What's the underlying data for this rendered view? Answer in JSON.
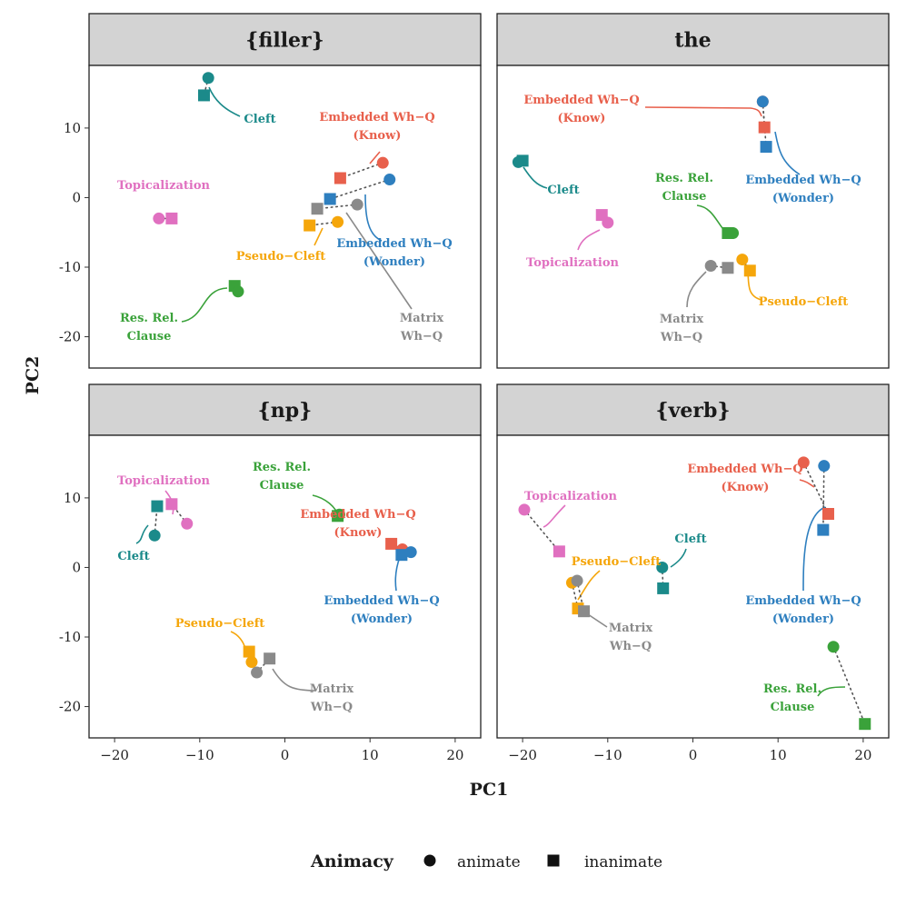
{
  "chart_data": {
    "type": "scatter",
    "xlabel": "PC1",
    "ylabel": "PC2",
    "xlim": [
      -23,
      23
    ],
    "xticks": [
      -20,
      -10,
      0,
      10,
      20
    ],
    "yticks": [
      -20,
      -10,
      0,
      10
    ],
    "colors": {
      "Cleft": "#1b8a8a",
      "Embedded Wh-Q (Know)": "#e8604c",
      "Embedded Wh-Q (Wonder)": "#2e7fbf",
      "Matrix Wh-Q": "#8a8a8a",
      "Pseudo-Cleft": "#f5a60b",
      "Res. Rel. Clause": "#3aa23a",
      "Topicalization": "#e070c0"
    },
    "legend": {
      "title": "Animacy",
      "entries": [
        {
          "label": "animate",
          "shape": "circle"
        },
        {
          "label": "inanimate",
          "shape": "square"
        }
      ]
    },
    "facets": [
      {
        "title": "{filler}",
        "ylim": [
          -24.5,
          19
        ],
        "points": [
          {
            "group": "Cleft",
            "animate": [
              -9,
              17.2
            ],
            "inanimate": [
              -9.5,
              14.7
            ],
            "label": [
              "Cleft"
            ]
          },
          {
            "group": "Embedded Wh-Q (Know)",
            "animate": [
              11.5,
              5
            ],
            "inanimate": [
              6.5,
              2.8
            ],
            "label": [
              "Embedded Wh−Q",
              "(Know)"
            ]
          },
          {
            "group": "Topicalization",
            "animate": [
              -14.8,
              -3
            ],
            "inanimate": [
              -13.3,
              -3
            ],
            "label": [
              "Topicalization"
            ]
          },
          {
            "group": "Embedded Wh-Q (Wonder)",
            "animate": [
              12.3,
              2.6
            ],
            "inanimate": [
              5.3,
              -0.2
            ],
            "label": [
              "Embedded Wh−Q",
              "(Wonder)"
            ]
          },
          {
            "group": "Matrix Wh-Q",
            "animate": [
              8.5,
              -1
            ],
            "inanimate": [
              3.8,
              -1.6
            ],
            "label": [
              "Matrix",
              "Wh−Q"
            ]
          },
          {
            "group": "Pseudo-Cleft",
            "animate": [
              6.2,
              -3.5
            ],
            "inanimate": [
              2.9,
              -4
            ],
            "label": [
              "Pseudo−Cleft"
            ]
          },
          {
            "group": "Res. Rel. Clause",
            "animate": [
              -5.5,
              -13.5
            ],
            "inanimate": [
              -5.9,
              -12.7
            ],
            "label": [
              "Res. Rel.",
              "Clause"
            ]
          }
        ]
      },
      {
        "title": "the",
        "ylim": [
          -24.5,
          19
        ],
        "points": [
          {
            "group": "Embedded Wh-Q (Know)",
            "animate": [
              8.2,
              13.8
            ],
            "inanimate": [
              8.4,
              10.1
            ],
            "label": [
              "Embedded Wh−Q",
              "(Know)"
            ]
          },
          {
            "group": "Embedded Wh-Q (Wonder)",
            "animate": [
              8.2,
              13.8
            ],
            "inanimate": [
              8.6,
              7.3
            ],
            "label": [
              "Embedded Wh−Q",
              "(Wonder)"
            ]
          },
          {
            "group": "Cleft",
            "animate": [
              -20.5,
              5.1
            ],
            "inanimate": [
              -20,
              5.3
            ],
            "label": [
              "Cleft"
            ]
          },
          {
            "group": "Res. Rel. Clause",
            "animate": [
              4.7,
              -5.1
            ],
            "inanimate": [
              4.1,
              -5.1
            ],
            "label": [
              "Res. Rel.",
              "Clause"
            ]
          },
          {
            "group": "Topicalization",
            "animate": [
              -10,
              -3.6
            ],
            "inanimate": [
              -10.7,
              -2.5
            ],
            "label": [
              "Topicalization"
            ]
          },
          {
            "group": "Matrix Wh-Q",
            "animate": [
              2.1,
              -9.8
            ],
            "inanimate": [
              4.1,
              -10.1
            ],
            "label": [
              "Matrix",
              "Wh−Q"
            ]
          },
          {
            "group": "Pseudo-Cleft",
            "animate": [
              5.8,
              -8.9
            ],
            "inanimate": [
              6.7,
              -10.5
            ],
            "label": [
              "Pseudo−Cleft"
            ]
          }
        ]
      },
      {
        "title": "{np}",
        "ylim": [
          -24.5,
          19
        ],
        "points": [
          {
            "group": "Topicalization",
            "animate": [
              -11.5,
              6.3
            ],
            "inanimate": [
              -13.3,
              9.1
            ],
            "label": [
              "Topicalization"
            ]
          },
          {
            "group": "Cleft",
            "animate": [
              -15.3,
              4.6
            ],
            "inanimate": [
              -15,
              8.8
            ],
            "label": [
              "Cleft"
            ]
          },
          {
            "group": "Res. Rel. Clause",
            "animate": [
              6.4,
              7.6
            ],
            "inanimate": [
              6.2,
              7.4
            ],
            "label": [
              "Res. Rel.",
              "Clause"
            ]
          },
          {
            "group": "Embedded Wh-Q (Know)",
            "animate": [
              13.8,
              2.6
            ],
            "inanimate": [
              12.5,
              3.4
            ],
            "label": [
              "Embedded Wh−Q",
              "(Know)"
            ]
          },
          {
            "group": "Embedded Wh-Q (Wonder)",
            "animate": [
              14.8,
              2.2
            ],
            "inanimate": [
              13.7,
              1.8
            ],
            "label": [
              "Embedded Wh−Q",
              "(Wonder)"
            ]
          },
          {
            "group": "Pseudo-Cleft",
            "animate": [
              -3.9,
              -13.6
            ],
            "inanimate": [
              -4.2,
              -12.1
            ],
            "label": [
              "Pseudo−Cleft"
            ]
          },
          {
            "group": "Matrix Wh-Q",
            "animate": [
              -3.3,
              -15.1
            ],
            "inanimate": [
              -1.8,
              -13.1
            ],
            "label": [
              "Matrix",
              "Wh−Q"
            ]
          }
        ]
      },
      {
        "title": "{verb}",
        "ylim": [
          -24.5,
          19
        ],
        "points": [
          {
            "group": "Embedded Wh-Q (Know)",
            "animate": [
              13,
              15.1
            ],
            "inanimate": [
              15.9,
              7.7
            ],
            "label": [
              "Embedded Wh−Q",
              "(Know)"
            ]
          },
          {
            "group": "Embedded Wh-Q (Wonder)",
            "animate": [
              15.4,
              14.6
            ],
            "inanimate": [
              15.3,
              5.4
            ],
            "label": [
              "Embedded Wh−Q",
              "(Wonder)"
            ]
          },
          {
            "group": "Topicalization",
            "animate": [
              -19.8,
              8.3
            ],
            "inanimate": [
              -15.7,
              2.3
            ],
            "label": [
              "Topicalization"
            ]
          },
          {
            "group": "Cleft",
            "animate": [
              -3.6,
              0
            ],
            "inanimate": [
              -3.5,
              -3
            ],
            "label": [
              "Cleft"
            ]
          },
          {
            "group": "Pseudo-Cleft",
            "animate": [
              -14.2,
              -2.2
            ],
            "inanimate": [
              -13.5,
              -5.9
            ],
            "label": [
              "Pseudo−Cleft"
            ]
          },
          {
            "group": "Matrix Wh-Q",
            "animate": [
              -13.6,
              -1.9
            ],
            "inanimate": [
              -12.8,
              -6.3
            ],
            "label": [
              "Matrix",
              "Wh−Q"
            ]
          },
          {
            "group": "Res. Rel. Clause",
            "animate": [
              16.5,
              -11.4
            ],
            "inanimate": [
              20.2,
              -22.5
            ],
            "label": [
              "Res. Rel.",
              "Clause"
            ]
          }
        ]
      }
    ]
  }
}
